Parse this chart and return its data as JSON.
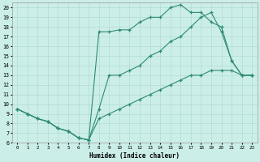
{
  "xlabel": "Humidex (Indice chaleur)",
  "xlim": [
    -0.5,
    23.5
  ],
  "ylim": [
    6,
    20.5
  ],
  "xticks": [
    0,
    1,
    2,
    3,
    4,
    5,
    6,
    7,
    8,
    9,
    10,
    11,
    12,
    13,
    14,
    15,
    16,
    17,
    18,
    19,
    20,
    21,
    22,
    23
  ],
  "yticks": [
    6,
    7,
    8,
    9,
    10,
    11,
    12,
    13,
    14,
    15,
    16,
    17,
    18,
    19,
    20
  ],
  "line_color": "#2e8b77",
  "bg_color": "#cceee8",
  "grid_color": "#aad8d0",
  "line1_x": [
    0,
    1,
    2,
    3,
    4,
    5,
    6,
    7,
    8,
    9,
    10,
    11,
    12,
    13,
    14,
    15,
    16,
    17,
    18,
    19,
    20,
    21,
    22,
    23
  ],
  "line1_y": [
    9.5,
    9.0,
    8.5,
    8.2,
    7.5,
    7.2,
    6.5,
    6.3,
    17.5,
    17.5,
    17.7,
    17.7,
    18.5,
    19.0,
    19.0,
    20.0,
    20.3,
    19.5,
    19.5,
    18.5,
    18.0,
    14.5,
    13.0,
    13.0
  ],
  "line2_x": [
    0,
    1,
    2,
    3,
    4,
    5,
    6,
    7,
    8,
    9,
    10,
    11,
    12,
    13,
    14,
    15,
    16,
    17,
    18,
    19,
    20,
    21,
    22,
    23
  ],
  "line2_y": [
    9.5,
    9.0,
    8.5,
    8.2,
    7.5,
    7.2,
    6.5,
    6.3,
    9.5,
    13.0,
    13.0,
    13.5,
    14.0,
    15.0,
    15.5,
    16.5,
    17.0,
    18.0,
    19.0,
    19.5,
    17.5,
    14.5,
    13.0,
    13.0
  ],
  "line3_x": [
    0,
    1,
    2,
    3,
    4,
    5,
    6,
    7,
    8,
    9,
    10,
    11,
    12,
    13,
    14,
    15,
    16,
    17,
    18,
    19,
    20,
    21,
    22,
    23
  ],
  "line3_y": [
    9.5,
    9.0,
    8.5,
    8.2,
    7.5,
    7.2,
    6.5,
    6.3,
    8.5,
    9.0,
    9.5,
    10.0,
    10.5,
    11.0,
    11.5,
    12.0,
    12.5,
    13.0,
    13.0,
    13.5,
    13.5,
    13.5,
    13.0,
    13.0
  ]
}
